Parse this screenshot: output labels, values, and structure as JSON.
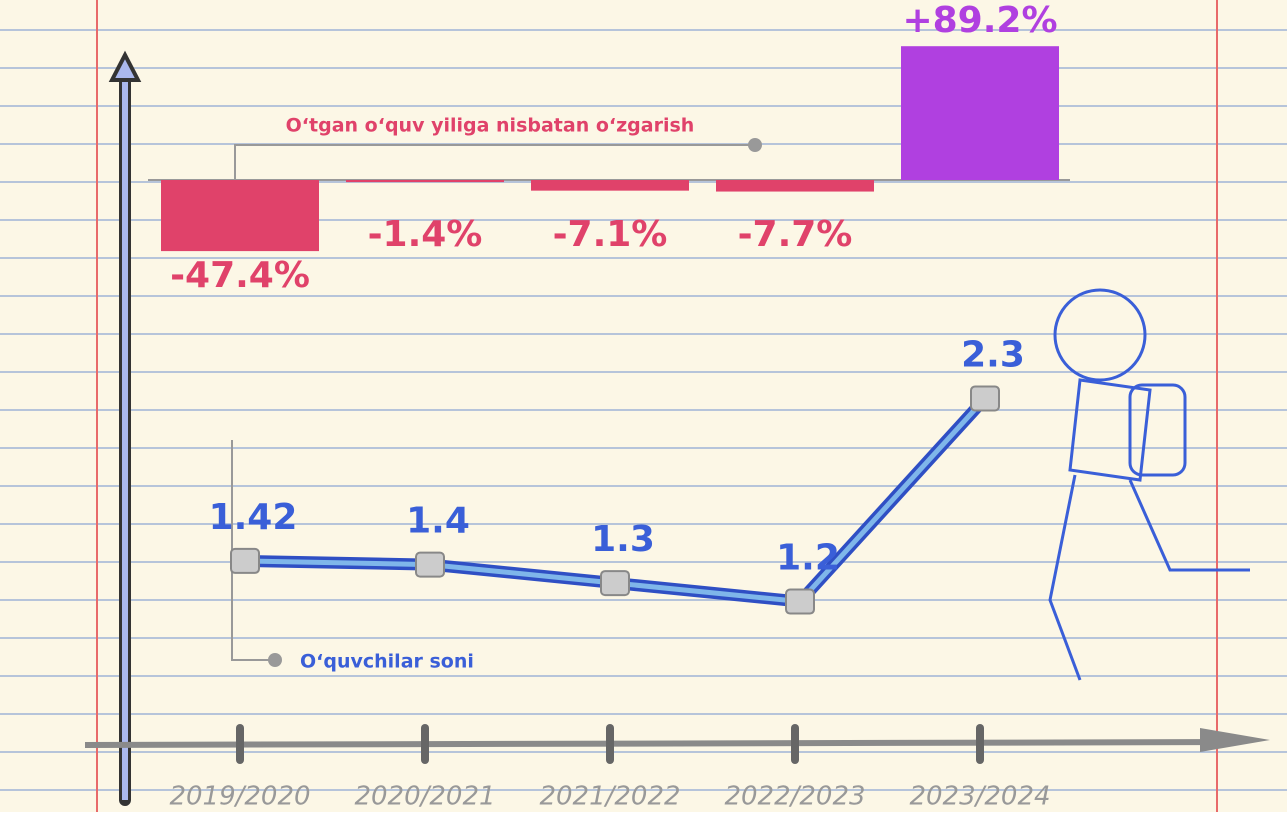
{
  "chart_data": [
    {
      "type": "bar",
      "legend_label": "O‘tgan o‘quv yiliga nisbatan o‘zgarish",
      "values": [
        -47.4,
        -1.4,
        -7.1,
        -7.7,
        89.2
      ],
      "value_labels": [
        "-47.4%",
        "-1.4%",
        "-7.1%",
        "-7.7%",
        "+89.2%"
      ],
      "color": "#e0426a",
      "positive_color": "#b040e0",
      "ylim": [
        -60,
        100
      ]
    },
    {
      "type": "line",
      "legend_label": "O‘quvchilar soni",
      "categories": [
        "2019/2020",
        "2020/2021",
        "2021/2022",
        "2022/2023",
        "2023/2024"
      ],
      "values": [
        1.42,
        1.4,
        1.3,
        1.2,
        2.3
      ],
      "color": "#3a5fd8",
      "ylim": [
        1.1,
        2.4
      ]
    }
  ]
}
